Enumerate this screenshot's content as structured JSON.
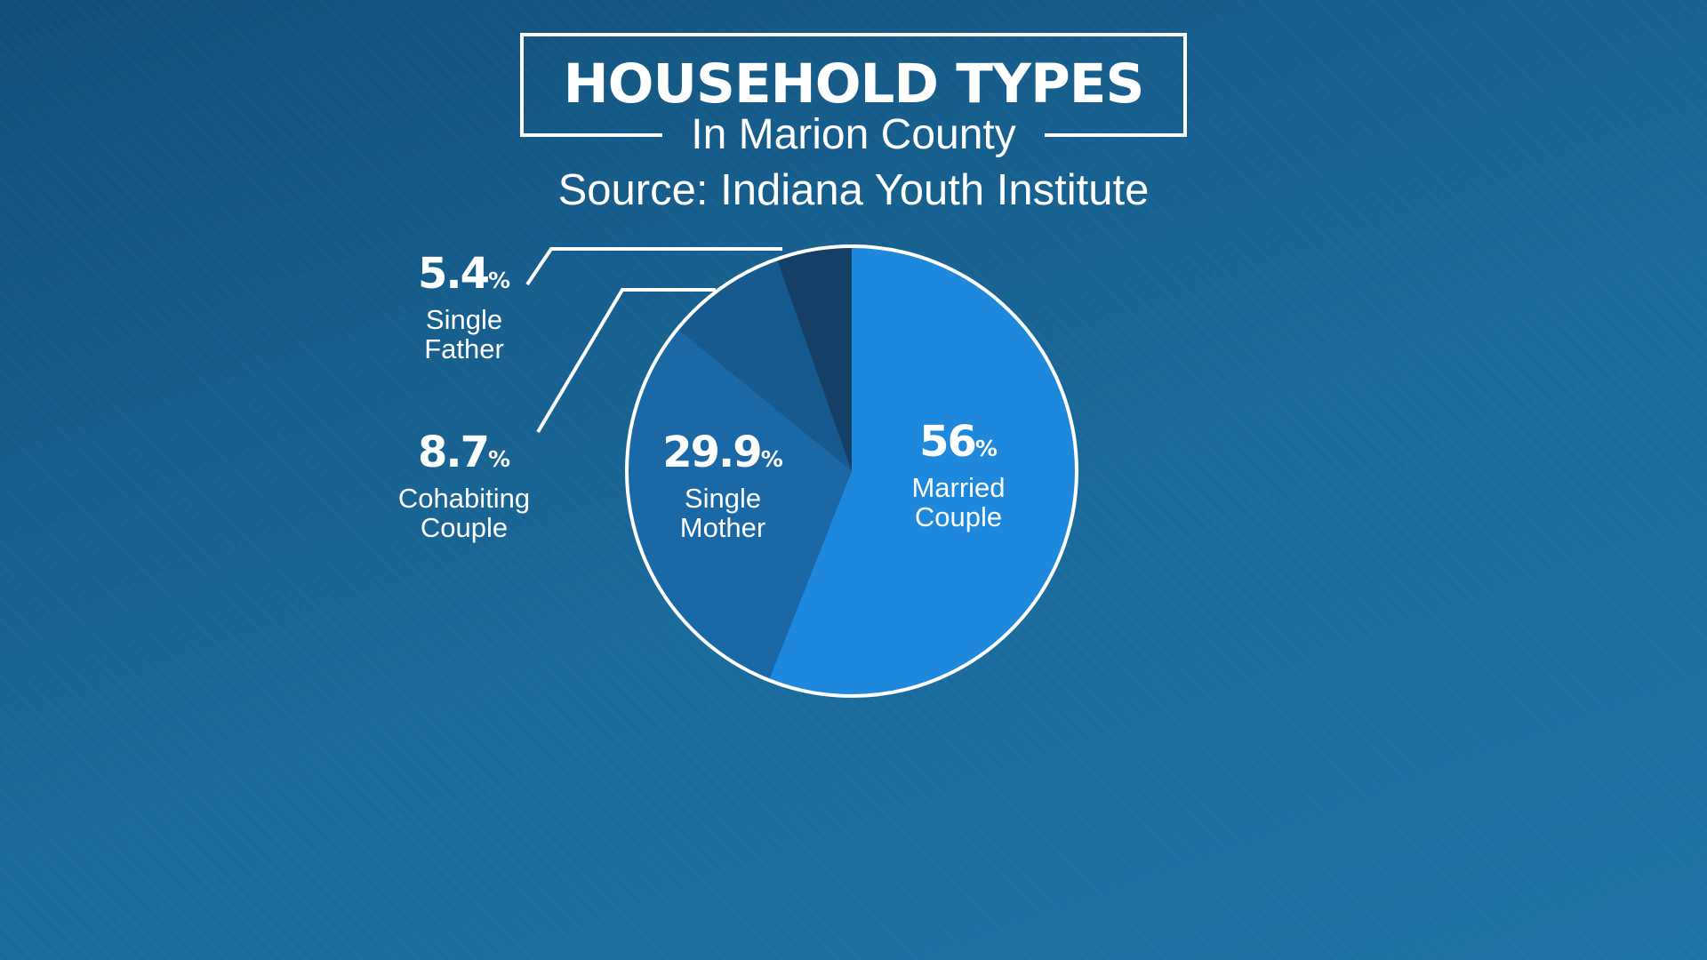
{
  "chart_data": {
    "type": "pie",
    "title": "HOUSEHOLD TYPES",
    "subtitle": "In Marion County",
    "source": "Source: Indiana Youth Institute",
    "percent_sign": "%",
    "slices": [
      {
        "label_lines": [
          "Married",
          "Couple"
        ],
        "value": 56,
        "value_text": "56",
        "color": "#1e88dd"
      },
      {
        "label_lines": [
          "Single",
          "Mother"
        ],
        "value": 29.9,
        "value_text": "29.9",
        "color": "#1a68a6"
      },
      {
        "label_lines": [
          "Cohabiting",
          "Couple"
        ],
        "value": 8.7,
        "value_text": "8.7",
        "color": "#175a8f"
      },
      {
        "label_lines": [
          "Single",
          "Father"
        ],
        "value": 5.4,
        "value_text": "5.4",
        "color": "#153f64"
      }
    ],
    "legend": "none",
    "grid": false
  }
}
